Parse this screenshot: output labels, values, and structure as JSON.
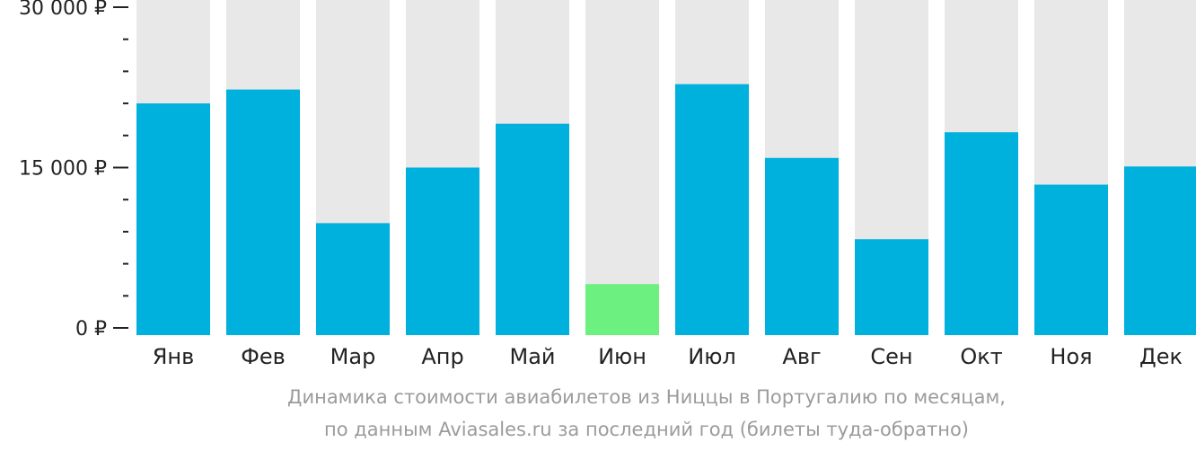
{
  "chart_data": {
    "type": "bar",
    "categories": [
      "Янв",
      "Фев",
      "Мар",
      "Апр",
      "Май",
      "Июн",
      "Июл",
      "Авг",
      "Сен",
      "Окт",
      "Ноя",
      "Дек"
    ],
    "values": [
      21000,
      22300,
      9800,
      15000,
      19100,
      4100,
      22800,
      15900,
      8300,
      18300,
      13400,
      15100
    ],
    "ylim": [
      0,
      30000
    ],
    "y_tick_labels": [
      {
        "value": 0,
        "label": "0 ₽"
      },
      {
        "value": 15000,
        "label": "15 000 ₽"
      },
      {
        "value": 30000,
        "label": "30 000 ₽"
      }
    ],
    "minor_tick_step": 3000,
    "highlight_index": 5,
    "colors": {
      "bar": "#00b0dd",
      "highlight": "#6cf080",
      "background_bar": "#e8e8e8",
      "axis": "#222222"
    },
    "caption": [
      "Динамика стоимости авиабилетов из Ниццы в Португалию по месяцам,",
      "по данным Aviasales.ru за последний год (билеты туда-обратно)"
    ]
  }
}
